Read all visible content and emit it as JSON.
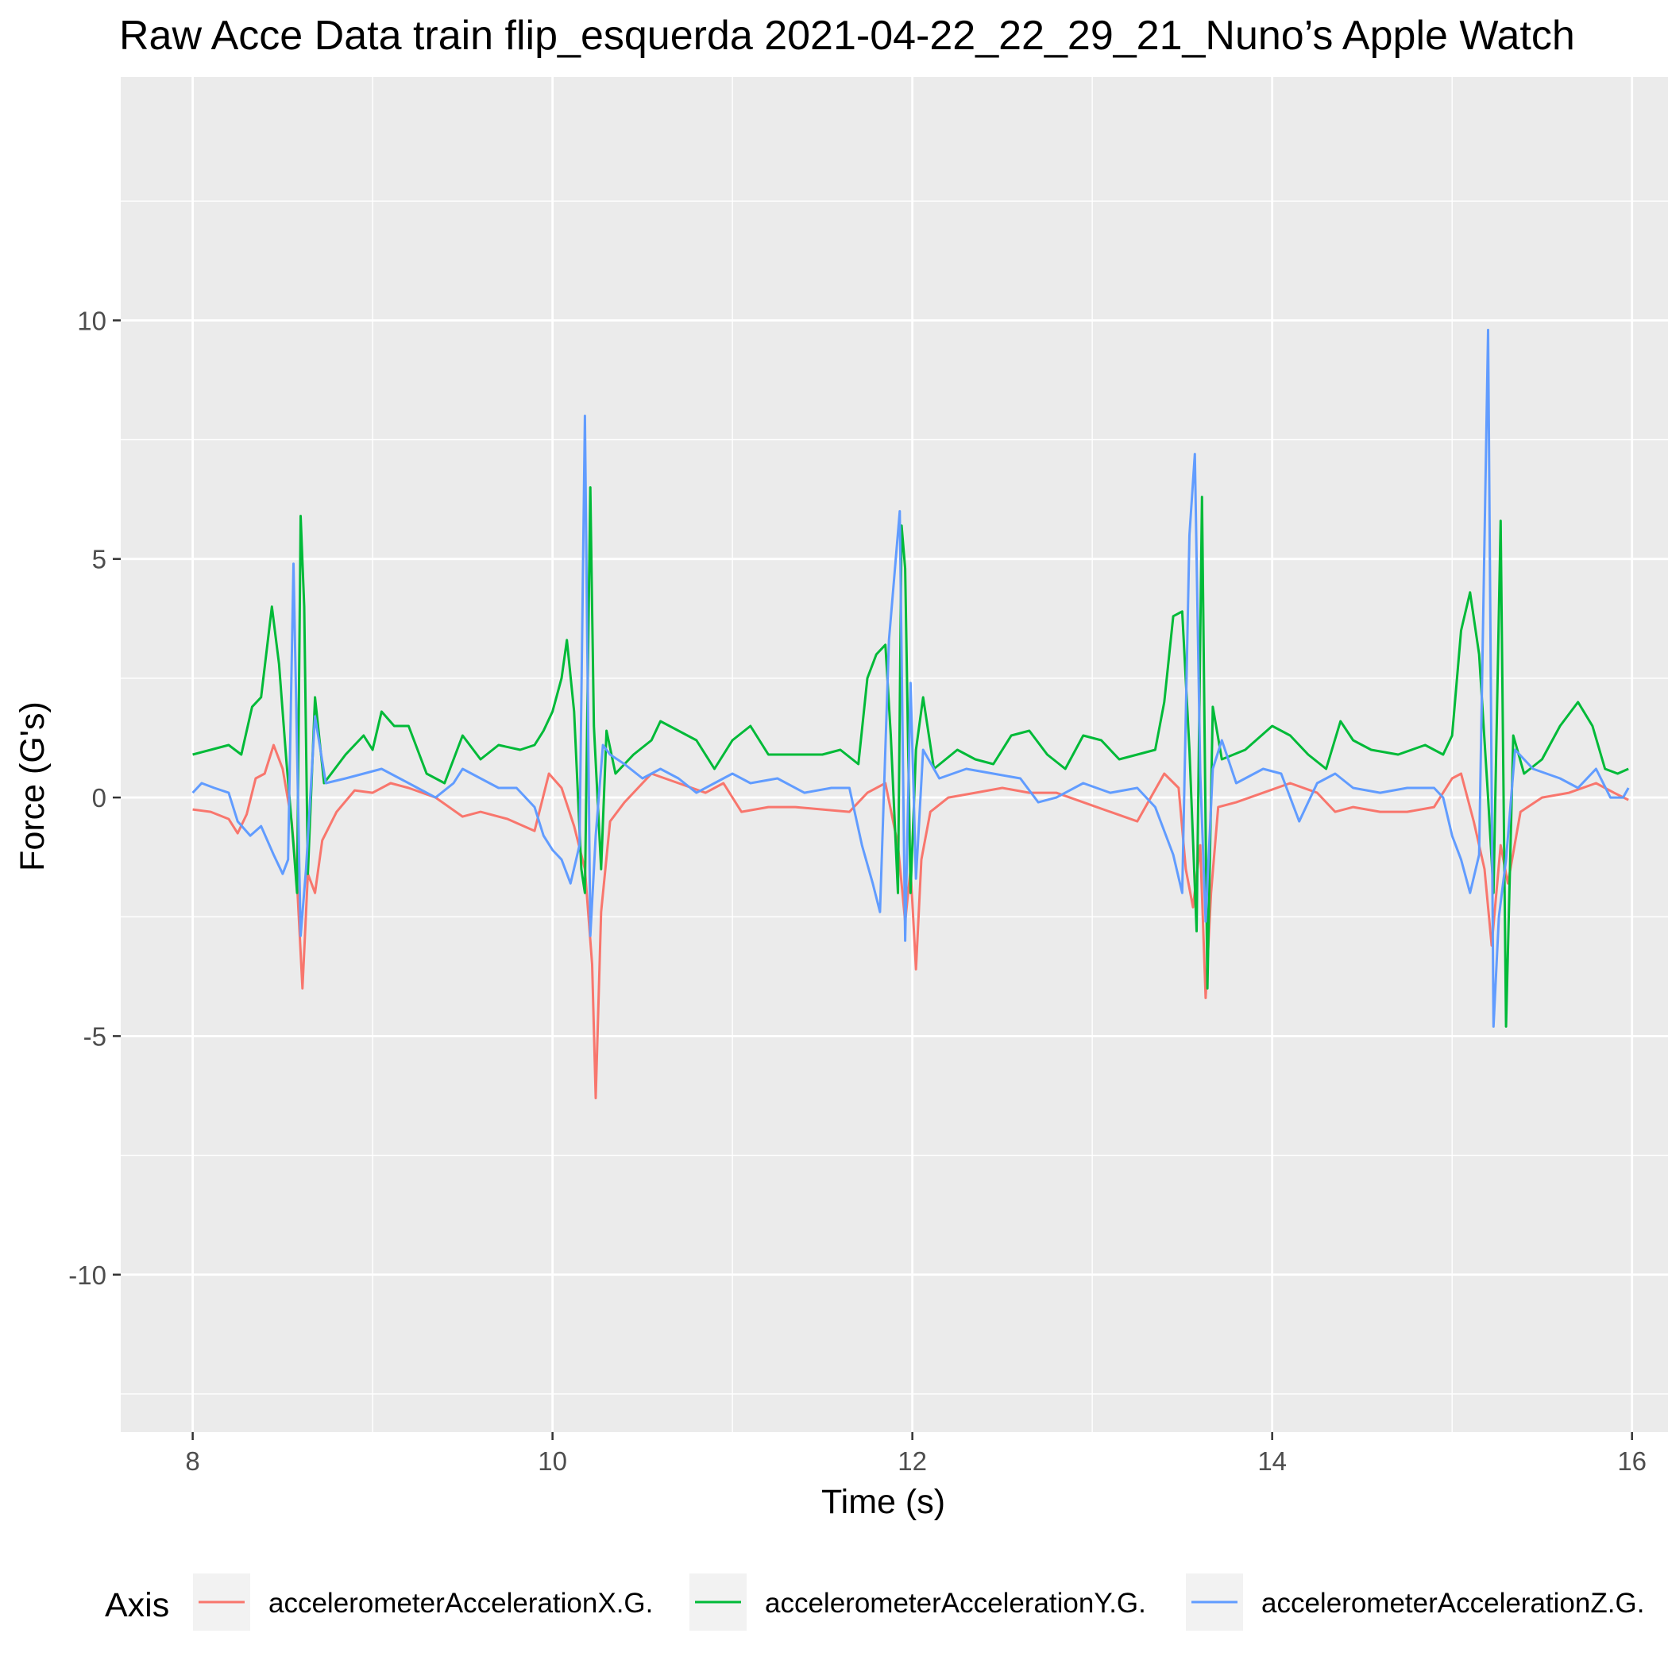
{
  "chart_data": {
    "type": "line",
    "title": "Raw Acce Data train flip_esquerda 2021-04-22_22_29_21_Nuno’s Apple Watch",
    "xlabel": "Time (s)",
    "ylabel": "Force (G's)",
    "xlim": [
      7.6,
      16.2
    ],
    "ylim": [
      -13.3,
      15.1
    ],
    "x_ticks": [
      8,
      10,
      12,
      14,
      16
    ],
    "x_tick_labels": [
      "8",
      "10",
      "12",
      "14",
      "16"
    ],
    "y_ticks": [
      -10,
      -5,
      0,
      5,
      10
    ],
    "y_tick_labels": [
      "-10",
      "-5",
      "0",
      "5",
      "10"
    ],
    "grid": true,
    "legend": {
      "title": "Axis",
      "position": "bottom"
    },
    "series": [
      {
        "name": "accelerometerAccelerationX.G.",
        "color": "#F8766D",
        "points": [
          [
            8.0,
            -0.25
          ],
          [
            8.1,
            -0.3
          ],
          [
            8.2,
            -0.45
          ],
          [
            8.25,
            -0.75
          ],
          [
            8.3,
            -0.35
          ],
          [
            8.35,
            0.4
          ],
          [
            8.4,
            0.5
          ],
          [
            8.45,
            1.1
          ],
          [
            8.5,
            0.6
          ],
          [
            8.55,
            -0.5
          ],
          [
            8.58,
            -1.8
          ],
          [
            8.61,
            -4.0
          ],
          [
            8.64,
            -1.6
          ],
          [
            8.68,
            -2.0
          ],
          [
            8.72,
            -0.9
          ],
          [
            8.8,
            -0.3
          ],
          [
            8.9,
            0.15
          ],
          [
            9.0,
            0.1
          ],
          [
            9.1,
            0.3
          ],
          [
            9.2,
            0.2
          ],
          [
            9.35,
            0.0
          ],
          [
            9.5,
            -0.4
          ],
          [
            9.6,
            -0.3
          ],
          [
            9.75,
            -0.45
          ],
          [
            9.9,
            -0.7
          ],
          [
            9.98,
            0.5
          ],
          [
            10.05,
            0.2
          ],
          [
            10.12,
            -0.6
          ],
          [
            10.18,
            -1.5
          ],
          [
            10.22,
            -3.5
          ],
          [
            10.24,
            -6.3
          ],
          [
            10.27,
            -2.4
          ],
          [
            10.32,
            -0.5
          ],
          [
            10.4,
            -0.1
          ],
          [
            10.55,
            0.5
          ],
          [
            10.7,
            0.3
          ],
          [
            10.85,
            0.1
          ],
          [
            10.95,
            0.3
          ],
          [
            11.05,
            -0.3
          ],
          [
            11.2,
            -0.2
          ],
          [
            11.35,
            -0.2
          ],
          [
            11.5,
            -0.25
          ],
          [
            11.65,
            -0.3
          ],
          [
            11.75,
            0.1
          ],
          [
            11.85,
            0.3
          ],
          [
            11.92,
            -1.0
          ],
          [
            11.96,
            -2.6
          ],
          [
            11.99,
            -1.5
          ],
          [
            12.02,
            -3.6
          ],
          [
            12.05,
            -1.3
          ],
          [
            12.1,
            -0.3
          ],
          [
            12.2,
            0.0
          ],
          [
            12.35,
            0.1
          ],
          [
            12.5,
            0.2
          ],
          [
            12.65,
            0.1
          ],
          [
            12.8,
            0.1
          ],
          [
            12.95,
            -0.1
          ],
          [
            13.1,
            -0.3
          ],
          [
            13.25,
            -0.5
          ],
          [
            13.4,
            0.5
          ],
          [
            13.48,
            0.2
          ],
          [
            13.52,
            -1.5
          ],
          [
            13.56,
            -2.3
          ],
          [
            13.6,
            -1.0
          ],
          [
            13.63,
            -4.2
          ],
          [
            13.66,
            -2.0
          ],
          [
            13.7,
            -0.2
          ],
          [
            13.8,
            -0.1
          ],
          [
            13.95,
            0.1
          ],
          [
            14.1,
            0.3
          ],
          [
            14.25,
            0.1
          ],
          [
            14.35,
            -0.3
          ],
          [
            14.45,
            -0.2
          ],
          [
            14.6,
            -0.3
          ],
          [
            14.75,
            -0.3
          ],
          [
            14.9,
            -0.2
          ],
          [
            15.0,
            0.4
          ],
          [
            15.05,
            0.5
          ],
          [
            15.12,
            -0.5
          ],
          [
            15.18,
            -1.5
          ],
          [
            15.22,
            -3.1
          ],
          [
            15.27,
            -1.0
          ],
          [
            15.31,
            -1.8
          ],
          [
            15.38,
            -0.3
          ],
          [
            15.5,
            0.0
          ],
          [
            15.65,
            0.1
          ],
          [
            15.8,
            0.3
          ],
          [
            15.9,
            0.1
          ],
          [
            15.98,
            -0.05
          ]
        ]
      },
      {
        "name": "accelerometerAccelerationY.G.",
        "color": "#00BA38",
        "points": [
          [
            8.0,
            0.9
          ],
          [
            8.1,
            1.0
          ],
          [
            8.2,
            1.1
          ],
          [
            8.27,
            0.9
          ],
          [
            8.33,
            1.9
          ],
          [
            8.38,
            2.1
          ],
          [
            8.44,
            4.0
          ],
          [
            8.48,
            2.8
          ],
          [
            8.52,
            0.8
          ],
          [
            8.56,
            -1.0
          ],
          [
            8.58,
            -2.0
          ],
          [
            8.6,
            5.9
          ],
          [
            8.62,
            4.0
          ],
          [
            8.64,
            -1.6
          ],
          [
            8.68,
            2.1
          ],
          [
            8.73,
            0.3
          ],
          [
            8.85,
            0.9
          ],
          [
            8.95,
            1.3
          ],
          [
            9.0,
            1.0
          ],
          [
            9.05,
            1.8
          ],
          [
            9.12,
            1.5
          ],
          [
            9.2,
            1.5
          ],
          [
            9.3,
            0.5
          ],
          [
            9.4,
            0.3
          ],
          [
            9.5,
            1.3
          ],
          [
            9.6,
            0.8
          ],
          [
            9.7,
            1.1
          ],
          [
            9.82,
            1.0
          ],
          [
            9.9,
            1.1
          ],
          [
            9.95,
            1.4
          ],
          [
            10.0,
            1.8
          ],
          [
            10.05,
            2.5
          ],
          [
            10.08,
            3.3
          ],
          [
            10.12,
            1.8
          ],
          [
            10.16,
            -1.5
          ],
          [
            10.18,
            -2.0
          ],
          [
            10.21,
            6.5
          ],
          [
            10.23,
            1.5
          ],
          [
            10.27,
            -1.5
          ],
          [
            10.3,
            1.4
          ],
          [
            10.35,
            0.5
          ],
          [
            10.45,
            0.9
          ],
          [
            10.55,
            1.2
          ],
          [
            10.6,
            1.6
          ],
          [
            10.7,
            1.4
          ],
          [
            10.8,
            1.2
          ],
          [
            10.9,
            0.6
          ],
          [
            11.0,
            1.2
          ],
          [
            11.1,
            1.5
          ],
          [
            11.2,
            0.9
          ],
          [
            11.35,
            0.9
          ],
          [
            11.5,
            0.9
          ],
          [
            11.6,
            1.0
          ],
          [
            11.7,
            0.7
          ],
          [
            11.75,
            2.5
          ],
          [
            11.8,
            3.0
          ],
          [
            11.85,
            3.2
          ],
          [
            11.88,
            1.3
          ],
          [
            11.92,
            -2.0
          ],
          [
            11.94,
            5.7
          ],
          [
            11.96,
            4.8
          ],
          [
            11.99,
            -2.0
          ],
          [
            12.02,
            1.0
          ],
          [
            12.06,
            2.1
          ],
          [
            12.12,
            0.6
          ],
          [
            12.25,
            1.0
          ],
          [
            12.35,
            0.8
          ],
          [
            12.45,
            0.7
          ],
          [
            12.55,
            1.3
          ],
          [
            12.65,
            1.4
          ],
          [
            12.75,
            0.9
          ],
          [
            12.85,
            0.6
          ],
          [
            12.95,
            1.3
          ],
          [
            13.05,
            1.2
          ],
          [
            13.15,
            0.8
          ],
          [
            13.25,
            0.9
          ],
          [
            13.35,
            1.0
          ],
          [
            13.4,
            2.0
          ],
          [
            13.45,
            3.8
          ],
          [
            13.5,
            3.9
          ],
          [
            13.54,
            1.0
          ],
          [
            13.58,
            -2.8
          ],
          [
            13.61,
            6.3
          ],
          [
            13.64,
            -4.0
          ],
          [
            13.67,
            1.9
          ],
          [
            13.72,
            0.8
          ],
          [
            13.85,
            1.0
          ],
          [
            14.0,
            1.5
          ],
          [
            14.1,
            1.3
          ],
          [
            14.2,
            0.9
          ],
          [
            14.3,
            0.6
          ],
          [
            14.38,
            1.6
          ],
          [
            14.45,
            1.2
          ],
          [
            14.55,
            1.0
          ],
          [
            14.7,
            0.9
          ],
          [
            14.85,
            1.1
          ],
          [
            14.95,
            0.9
          ],
          [
            15.0,
            1.3
          ],
          [
            15.05,
            3.5
          ],
          [
            15.1,
            4.3
          ],
          [
            15.15,
            3.0
          ],
          [
            15.2,
            0.0
          ],
          [
            15.23,
            -2.0
          ],
          [
            15.27,
            5.8
          ],
          [
            15.3,
            -4.8
          ],
          [
            15.34,
            1.3
          ],
          [
            15.4,
            0.5
          ],
          [
            15.5,
            0.8
          ],
          [
            15.6,
            1.5
          ],
          [
            15.7,
            2.0
          ],
          [
            15.78,
            1.5
          ],
          [
            15.85,
            0.6
          ],
          [
            15.92,
            0.5
          ],
          [
            15.98,
            0.6
          ]
        ]
      },
      {
        "name": "accelerometerAccelerationZ.G.",
        "color": "#619CFF",
        "points": [
          [
            8.0,
            0.1
          ],
          [
            8.05,
            0.3
          ],
          [
            8.12,
            0.2
          ],
          [
            8.2,
            0.1
          ],
          [
            8.25,
            -0.5
          ],
          [
            8.32,
            -0.8
          ],
          [
            8.38,
            -0.6
          ],
          [
            8.45,
            -1.2
          ],
          [
            8.5,
            -1.6
          ],
          [
            8.53,
            -1.3
          ],
          [
            8.56,
            4.9
          ],
          [
            8.58,
            1.0
          ],
          [
            8.6,
            -2.9
          ],
          [
            8.63,
            -1.5
          ],
          [
            8.68,
            1.7
          ],
          [
            8.74,
            0.3
          ],
          [
            8.85,
            0.4
          ],
          [
            8.95,
            0.5
          ],
          [
            9.05,
            0.6
          ],
          [
            9.15,
            0.4
          ],
          [
            9.25,
            0.2
          ],
          [
            9.35,
            0.0
          ],
          [
            9.45,
            0.3
          ],
          [
            9.5,
            0.6
          ],
          [
            9.6,
            0.4
          ],
          [
            9.7,
            0.2
          ],
          [
            9.8,
            0.2
          ],
          [
            9.9,
            -0.2
          ],
          [
            9.95,
            -0.8
          ],
          [
            10.0,
            -1.1
          ],
          [
            10.05,
            -1.3
          ],
          [
            10.1,
            -1.8
          ],
          [
            10.15,
            -1.0
          ],
          [
            10.18,
            8.0
          ],
          [
            10.21,
            -2.9
          ],
          [
            10.24,
            -0.8
          ],
          [
            10.28,
            1.1
          ],
          [
            10.32,
            0.9
          ],
          [
            10.4,
            0.7
          ],
          [
            10.5,
            0.4
          ],
          [
            10.6,
            0.6
          ],
          [
            10.7,
            0.4
          ],
          [
            10.8,
            0.1
          ],
          [
            10.9,
            0.3
          ],
          [
            11.0,
            0.5
          ],
          [
            11.1,
            0.3
          ],
          [
            11.25,
            0.4
          ],
          [
            11.4,
            0.1
          ],
          [
            11.55,
            0.2
          ],
          [
            11.65,
            0.2
          ],
          [
            11.72,
            -1.0
          ],
          [
            11.78,
            -1.8
          ],
          [
            11.82,
            -2.4
          ],
          [
            11.87,
            3.3
          ],
          [
            11.93,
            6.0
          ],
          [
            11.96,
            -3.0
          ],
          [
            11.99,
            2.4
          ],
          [
            12.02,
            -1.7
          ],
          [
            12.06,
            1.0
          ],
          [
            12.15,
            0.4
          ],
          [
            12.3,
            0.6
          ],
          [
            12.45,
            0.5
          ],
          [
            12.6,
            0.4
          ],
          [
            12.7,
            -0.1
          ],
          [
            12.8,
            0.0
          ],
          [
            12.95,
            0.3
          ],
          [
            13.1,
            0.1
          ],
          [
            13.25,
            0.2
          ],
          [
            13.35,
            -0.2
          ],
          [
            13.45,
            -1.2
          ],
          [
            13.5,
            -2.0
          ],
          [
            13.54,
            5.5
          ],
          [
            13.57,
            7.2
          ],
          [
            13.6,
            0.5
          ],
          [
            13.63,
            -2.6
          ],
          [
            13.67,
            0.6
          ],
          [
            13.72,
            1.2
          ],
          [
            13.8,
            0.3
          ],
          [
            13.95,
            0.6
          ],
          [
            14.05,
            0.5
          ],
          [
            14.15,
            -0.5
          ],
          [
            14.25,
            0.3
          ],
          [
            14.35,
            0.5
          ],
          [
            14.45,
            0.2
          ],
          [
            14.6,
            0.1
          ],
          [
            14.75,
            0.2
          ],
          [
            14.9,
            0.2
          ],
          [
            14.95,
            0.0
          ],
          [
            15.0,
            -0.8
          ],
          [
            15.05,
            -1.3
          ],
          [
            15.1,
            -2.0
          ],
          [
            15.15,
            -1.2
          ],
          [
            15.2,
            9.8
          ],
          [
            15.23,
            -4.8
          ],
          [
            15.26,
            -2.5
          ],
          [
            15.3,
            -1.3
          ],
          [
            15.35,
            1.0
          ],
          [
            15.45,
            0.6
          ],
          [
            15.6,
            0.4
          ],
          [
            15.7,
            0.2
          ],
          [
            15.8,
            0.6
          ],
          [
            15.88,
            0.0
          ],
          [
            15.95,
            0.0
          ],
          [
            15.98,
            0.2
          ]
        ]
      }
    ]
  }
}
